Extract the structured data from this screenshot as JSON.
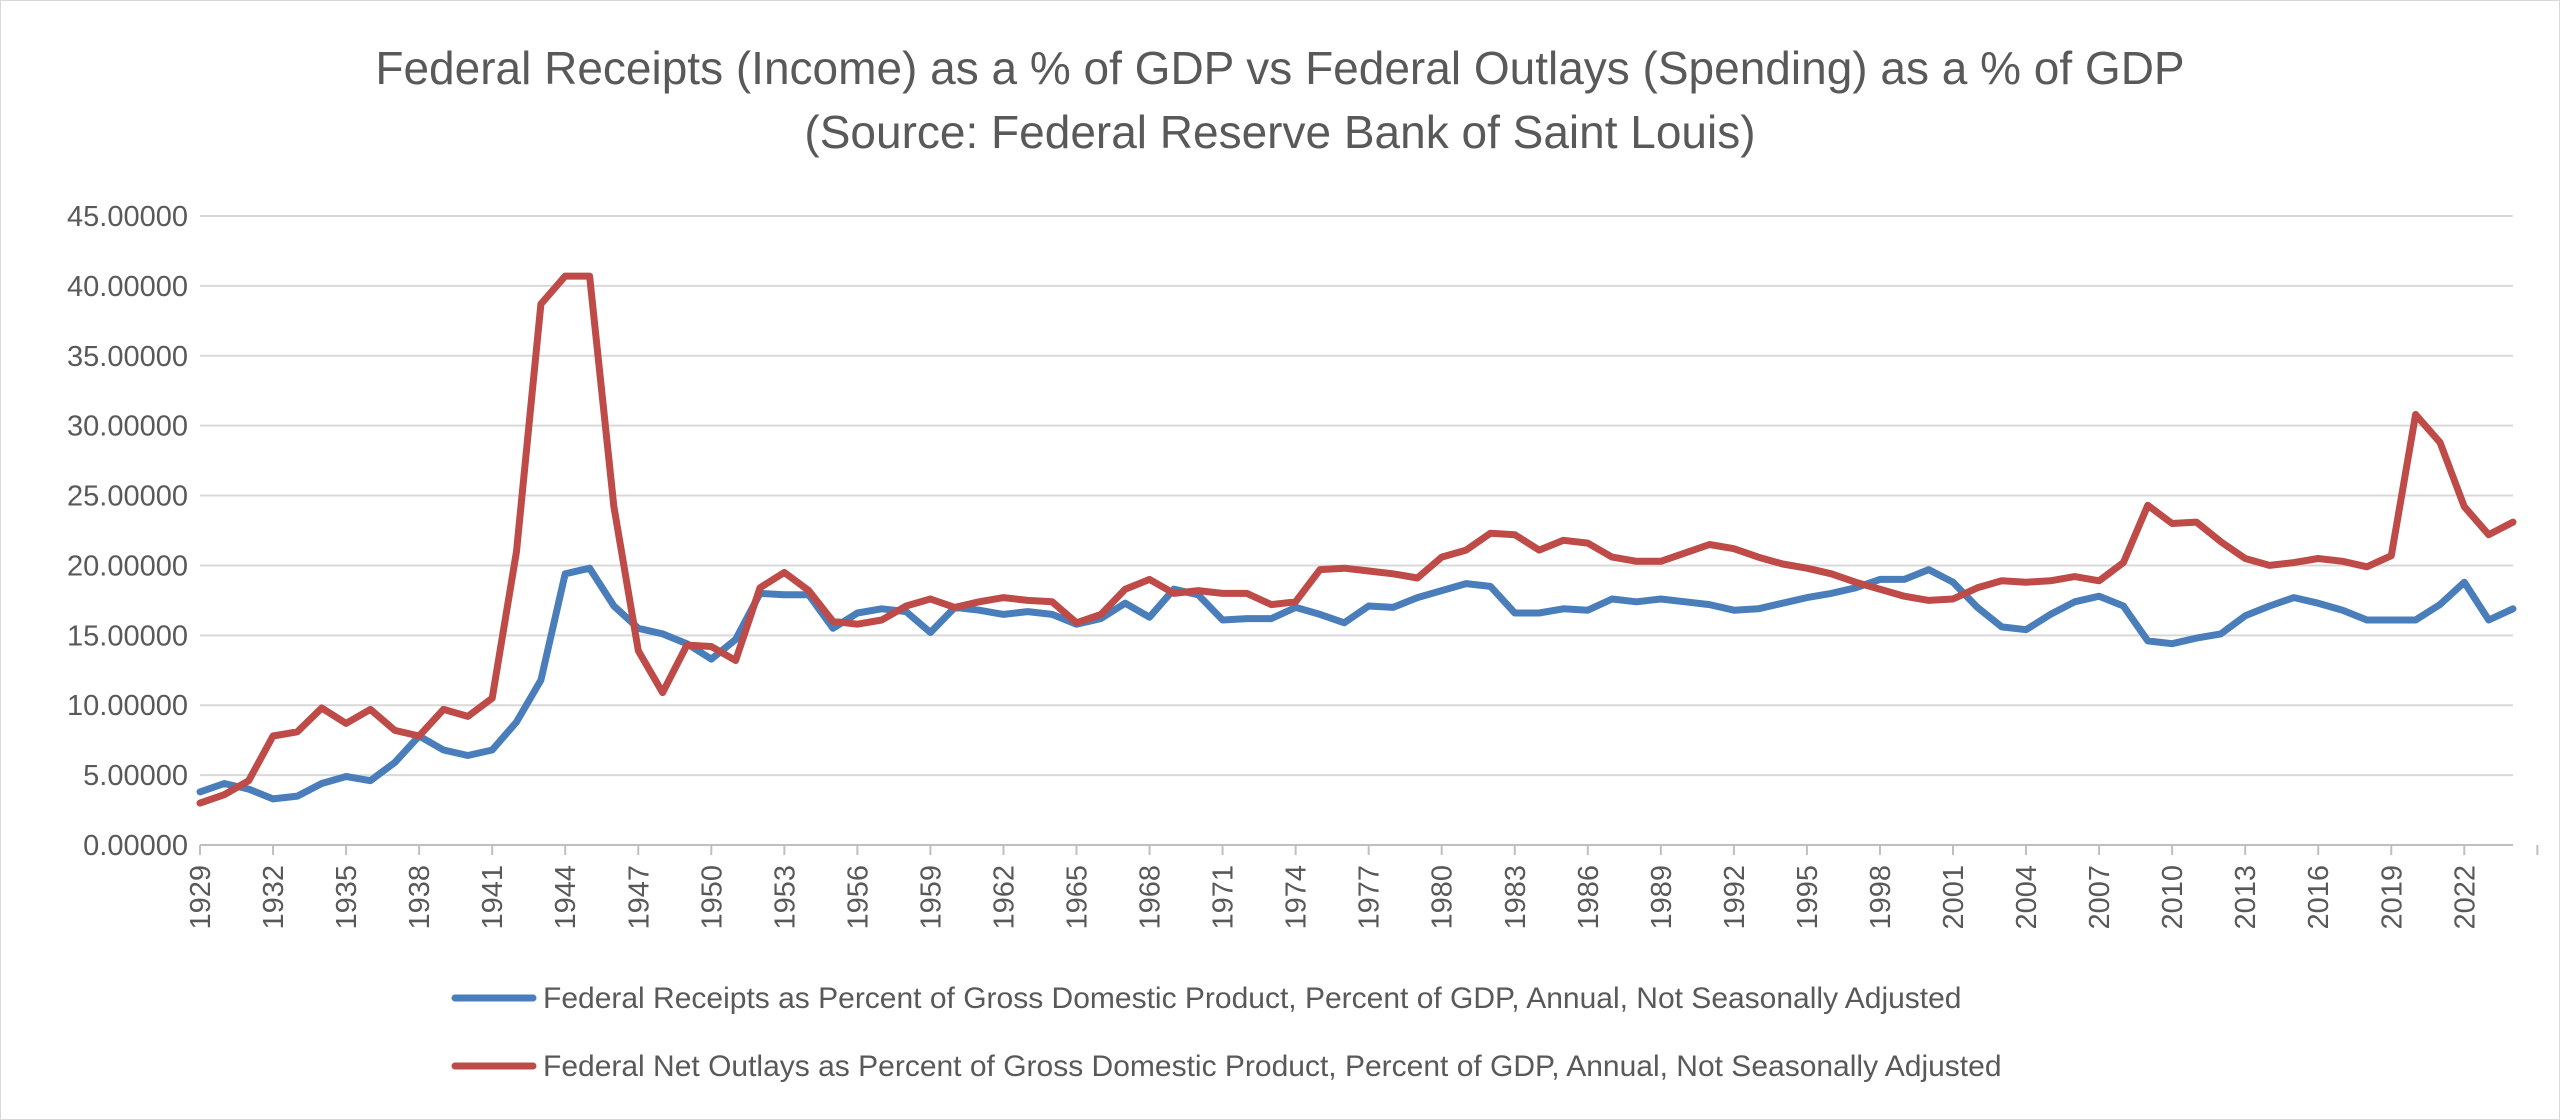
{
  "chart_data": {
    "type": "line",
    "title": "Federal Receipts (Income) as a % of GDP vs Federal Outlays (Spending) as a % of GDP",
    "subtitle": "(Source: Federal Reserve Bank of Saint Louis)",
    "xlabel": "",
    "ylabel": "",
    "ylim": [
      0,
      45
    ],
    "y_ticks": [
      "0.00000",
      "5.00000",
      "10.00000",
      "15.00000",
      "20.00000",
      "25.00000",
      "30.00000",
      "35.00000",
      "40.00000",
      "45.00000"
    ],
    "x_tick_labels": [
      "1929",
      "1932",
      "1935",
      "1938",
      "1941",
      "1944",
      "1947",
      "1950",
      "1953",
      "1956",
      "1959",
      "1962",
      "1965",
      "1968",
      "1971",
      "1974",
      "1977",
      "1980",
      "1983",
      "1986",
      "1989",
      "1992",
      "1995",
      "1998",
      "2001",
      "2004",
      "2007",
      "2010",
      "2013",
      "2016",
      "2019",
      "2022"
    ],
    "grid": "horizontal",
    "legend_position": "bottom",
    "x": [
      1929,
      1930,
      1931,
      1932,
      1933,
      1934,
      1935,
      1936,
      1937,
      1938,
      1939,
      1940,
      1941,
      1942,
      1943,
      1944,
      1945,
      1946,
      1947,
      1948,
      1949,
      1950,
      1951,
      1952,
      1953,
      1954,
      1955,
      1956,
      1957,
      1958,
      1959,
      1960,
      1961,
      1962,
      1963,
      1964,
      1965,
      1966,
      1967,
      1968,
      1969,
      1970,
      1971,
      1972,
      1973,
      1974,
      1975,
      1976,
      1977,
      1978,
      1979,
      1980,
      1981,
      1982,
      1983,
      1984,
      1985,
      1986,
      1987,
      1988,
      1989,
      1990,
      1991,
      1992,
      1993,
      1994,
      1995,
      1996,
      1997,
      1998,
      1999,
      2000,
      2001,
      2002,
      2003,
      2004,
      2005,
      2006,
      2007,
      2008,
      2009,
      2010,
      2011,
      2012,
      2013,
      2014,
      2015,
      2016,
      2017,
      2018,
      2019,
      2020,
      2021,
      2022,
      2023,
      2024
    ],
    "series": [
      {
        "name": "Federal Receipts as Percent of Gross Domestic Product, Percent of GDP, Annual, Not Seasonally Adjusted",
        "color": "#4a7ebb",
        "values": [
          3.8,
          4.4,
          4.0,
          3.3,
          3.5,
          4.4,
          4.9,
          4.6,
          5.9,
          7.8,
          6.8,
          6.4,
          6.8,
          8.8,
          11.8,
          19.4,
          19.8,
          17.1,
          15.5,
          15.1,
          14.4,
          13.3,
          14.7,
          18.0,
          17.9,
          17.9,
          15.5,
          16.6,
          16.9,
          16.7,
          15.2,
          17.0,
          16.8,
          16.5,
          16.7,
          16.5,
          15.8,
          16.2,
          17.3,
          16.3,
          18.3,
          17.9,
          16.1,
          16.2,
          16.2,
          17.0,
          16.5,
          15.9,
          17.1,
          17.0,
          17.7,
          18.2,
          18.7,
          18.5,
          16.6,
          16.6,
          16.9,
          16.8,
          17.6,
          17.4,
          17.6,
          17.4,
          17.2,
          16.8,
          16.9,
          17.3,
          17.7,
          18.0,
          18.4,
          19.0,
          19.0,
          19.7,
          18.8,
          17.0,
          15.6,
          15.4,
          16.5,
          17.4,
          17.8,
          17.1,
          14.6,
          14.4,
          14.8,
          15.1,
          16.4,
          17.1,
          17.7,
          17.3,
          16.8,
          16.1,
          16.1,
          16.1,
          17.2,
          18.8,
          16.1,
          16.9
        ]
      },
      {
        "name": "Federal Net Outlays as Percent of Gross Domestic Product, Percent of GDP, Annual, Not Seasonally Adjusted",
        "color": "#be4b48",
        "values": [
          3.0,
          3.6,
          4.6,
          7.8,
          8.1,
          9.8,
          8.7,
          9.7,
          8.2,
          7.8,
          9.7,
          9.2,
          10.5,
          21.0,
          38.7,
          40.7,
          40.7,
          24.2,
          13.9,
          10.9,
          14.3,
          14.2,
          13.2,
          18.4,
          19.5,
          18.2,
          16.0,
          15.8,
          16.1,
          17.1,
          17.6,
          17.0,
          17.4,
          17.7,
          17.5,
          17.4,
          15.9,
          16.5,
          18.3,
          19.0,
          18.0,
          18.2,
          18.0,
          18.0,
          17.2,
          17.4,
          19.7,
          19.8,
          19.6,
          19.4,
          19.1,
          20.6,
          21.1,
          22.3,
          22.2,
          21.1,
          21.8,
          21.6,
          20.6,
          20.3,
          20.3,
          20.9,
          21.5,
          21.2,
          20.6,
          20.1,
          19.8,
          19.4,
          18.8,
          18.3,
          17.8,
          17.5,
          17.6,
          18.4,
          18.9,
          18.8,
          18.9,
          19.2,
          18.9,
          20.2,
          24.3,
          23.0,
          23.1,
          21.7,
          20.5,
          20.0,
          20.2,
          20.5,
          20.3,
          19.9,
          20.7,
          30.8,
          28.8,
          24.2,
          22.2,
          23.1
        ]
      }
    ]
  }
}
